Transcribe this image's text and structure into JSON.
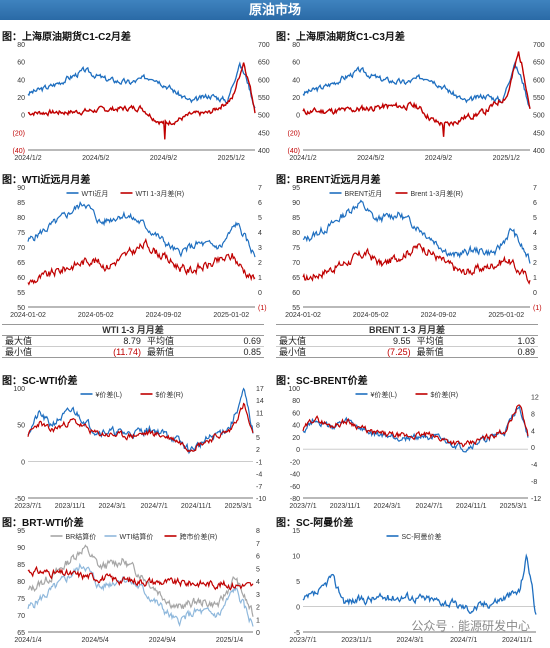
{
  "banner": "原油市场",
  "colors": {
    "blue": "#1f6fc0",
    "red": "#c00000",
    "lblue": "#8fb8dc",
    "gray": "#a6a6a6",
    "dred": "#a00000"
  },
  "watermark": "公众号 · 能源研发中心",
  "charts": [
    {
      "id": "c1",
      "title": "图：上海原油期货C1-C2月差",
      "type": "line",
      "yL": {
        "min": -40,
        "max": 80,
        "ticks": [
          "80",
          "60",
          "40",
          "20",
          "0",
          "(20)",
          "(40)"
        ],
        "negIdx": [
          5,
          6
        ]
      },
      "yR": {
        "min": 400,
        "max": 700,
        "ticks": [
          "700",
          "650",
          "600",
          "550",
          "500",
          "450",
          "400"
        ]
      },
      "xticks": [
        "2024/1/2",
        "2024/5/2",
        "2024/9/2",
        "2025/1/2"
      ],
      "x_range": [
        "2024-01-02",
        "2025-03-10"
      ],
      "series": [
        {
          "name": "",
          "axis": "R",
          "color": "blue",
          "width": 1.3,
          "shape": "sc_price",
          "base": 540
        },
        {
          "name": "",
          "axis": "L",
          "color": "red",
          "width": 1.4,
          "shape": "c1c2_spread"
        }
      ]
    },
    {
      "id": "c2",
      "title": "图：上海原油期货C1-C3月差",
      "type": "line",
      "yL": {
        "min": -40,
        "max": 80,
        "ticks": [
          "80",
          "60",
          "40",
          "20",
          "0",
          "(20)",
          "(40)"
        ],
        "negIdx": [
          5,
          6
        ]
      },
      "yR": {
        "min": 400,
        "max": 700,
        "ticks": [
          "700",
          "650",
          "600",
          "550",
          "500",
          "450",
          "400"
        ]
      },
      "xticks": [
        "2024/1/2",
        "2024/5/2",
        "2024/9/2",
        "2025/1/2"
      ],
      "x_range": [
        "2024-01-02",
        "2025-03-10"
      ],
      "series": [
        {
          "name": "",
          "axis": "R",
          "color": "blue",
          "width": 1.3,
          "shape": "sc_price",
          "base": 540
        },
        {
          "name": "",
          "axis": "L",
          "color": "red",
          "width": 1.4,
          "shape": "c1c3_spread"
        }
      ]
    },
    {
      "id": "c3",
      "title": "图：WTI近远月月差",
      "type": "line",
      "legend": [
        "WTI近月",
        "WTI 1-3月差(R)"
      ],
      "yL": {
        "min": 50,
        "max": 90,
        "ticks": [
          "90",
          "85",
          "80",
          "75",
          "70",
          "65",
          "60",
          "55",
          "50"
        ]
      },
      "yR": {
        "min": -1,
        "max": 7,
        "ticks": [
          "7",
          "6",
          "5",
          "4",
          "3",
          "2",
          "1",
          "0",
          "(1)"
        ],
        "negIdx": [
          8
        ]
      },
      "xticks": [
        "2024-01-02",
        "2024-05-02",
        "2024-09-02",
        "2025-01-02"
      ],
      "x_range": [
        "2024-01-02",
        "2025-03-10"
      ],
      "series": [
        {
          "name": "WTI近月",
          "axis": "L",
          "color": "blue",
          "width": 1.2,
          "shape": "wti"
        },
        {
          "name": "WTI 1-3月差(R)",
          "axis": "R",
          "color": "red",
          "width": 1.2,
          "shape": "wti_spread"
        }
      ]
    },
    {
      "id": "c4",
      "title": "图：BRENT近远月月差",
      "type": "line",
      "legend": [
        "BRENT近月",
        "Brent 1-3月差(R)"
      ],
      "yL": {
        "min": 55,
        "max": 95,
        "ticks": [
          "95",
          "90",
          "85",
          "80",
          "75",
          "70",
          "65",
          "60",
          "55"
        ]
      },
      "yR": {
        "min": -1,
        "max": 7,
        "ticks": [
          "7",
          "6",
          "5",
          "4",
          "3",
          "2",
          "1",
          "0",
          "(1)"
        ],
        "negIdx": [
          8
        ]
      },
      "xticks": [
        "2024-01-02",
        "2024-05-02",
        "2024-09-02",
        "2025-01-02"
      ],
      "x_range": [
        "2024-01-02",
        "2025-03-10"
      ],
      "series": [
        {
          "name": "BRENT近月",
          "axis": "L",
          "color": "blue",
          "width": 1.2,
          "shape": "brent"
        },
        {
          "name": "Brent 1-3月差(R)",
          "axis": "R",
          "color": "red",
          "width": 1.2,
          "shape": "brent_spread"
        }
      ]
    },
    {
      "id": "c5",
      "title": "图：SC-WTI价差",
      "type": "line",
      "legend": [
        "¥价差(L)",
        "$价差(R)"
      ],
      "yL": {
        "min": -50,
        "max": 100,
        "ticks": [
          "100",
          "50",
          "0",
          "-50"
        ]
      },
      "yR": {
        "min": -10,
        "max": 17,
        "ticks": [
          "17",
          "14",
          "11",
          "8",
          "5",
          "2",
          "-1",
          "-4",
          "-7",
          "-10"
        ]
      },
      "xticks": [
        "2023/7/1",
        "2023/11/1",
        "2024/3/1",
        "2024/7/1",
        "2024/11/1",
        "2025/3/1"
      ],
      "x_range": [
        "2023-07-01",
        "2025-03-10"
      ],
      "series": [
        {
          "name": "¥价差(L)",
          "axis": "L",
          "color": "blue",
          "width": 1.2,
          "shape": "sc_wti_cny"
        },
        {
          "name": "$价差(R)",
          "axis": "R",
          "color": "red",
          "width": 1.2,
          "shape": "sc_wti_usd"
        }
      ]
    },
    {
      "id": "c6",
      "title": "图：SC-BRENT价差",
      "type": "line",
      "legend": [
        "¥价差(L)",
        "$价差(R)"
      ],
      "yL": {
        "min": -80,
        "max": 100,
        "ticks": [
          "100",
          "80",
          "60",
          "40",
          "20",
          "0",
          "-20",
          "-40",
          "-60",
          "-80"
        ]
      },
      "yR": {
        "min": -12,
        "max": 14,
        "ticks": [
          "14",
          "12",
          "10",
          "8",
          "6",
          "4",
          "2",
          "0",
          "-2",
          "-4",
          "-6",
          "-8",
          "-10",
          "-12"
        ],
        "showIdx": [
          1,
          3,
          5,
          7,
          9,
          11,
          13
        ]
      },
      "xticks": [
        "2023/7/1",
        "2023/11/1",
        "2024/3/1",
        "2024/7/1",
        "2024/11/1",
        "2025/3/1"
      ],
      "x_range": [
        "2023-07-01",
        "2025-03-10"
      ],
      "series": [
        {
          "name": "¥价差(L)",
          "axis": "L",
          "color": "blue",
          "width": 1.2,
          "shape": "sc_brt_cny"
        },
        {
          "name": "$价差(R)",
          "axis": "R",
          "color": "red",
          "width": 1.2,
          "shape": "sc_brt_usd"
        }
      ]
    },
    {
      "id": "c7",
      "title": "图：BRT-WTI价差",
      "type": "line",
      "legend": [
        "BR结算价",
        "WTI结算价",
        "跨市价差(R)"
      ],
      "yL": {
        "min": 65,
        "max": 95,
        "ticks": [
          "95",
          "90",
          "85",
          "80",
          "75",
          "70",
          "65"
        ]
      },
      "yR": {
        "min": 0,
        "max": 8,
        "ticks": [
          "8",
          "7",
          "6",
          "5",
          "4",
          "3",
          "2",
          "1",
          "0"
        ]
      },
      "xticks": [
        "2024/1/4",
        "2024/5/4",
        "2024/9/4",
        "2025/1/4"
      ],
      "x_range": [
        "2024-01-04",
        "2025-03-10"
      ],
      "series": [
        {
          "name": "BR结算价",
          "axis": "L",
          "color": "gray",
          "width": 1.2,
          "shape": "brent"
        },
        {
          "name": "WTI结算价",
          "axis": "L",
          "color": "lblue",
          "width": 1.2,
          "shape": "wti"
        },
        {
          "name": "跨市价差(R)",
          "axis": "R",
          "color": "red",
          "width": 1.2,
          "shape": "brt_wti"
        }
      ]
    },
    {
      "id": "c8",
      "title": "图：SC-阿曼价差",
      "type": "line",
      "legend": [
        "SC-阿曼价差"
      ],
      "yL": {
        "min": -5,
        "max": 15,
        "ticks": [
          "15",
          "10",
          "5",
          "0",
          "-5"
        ]
      },
      "xticks": [
        "2023/7/1",
        "2023/11/1",
        "2024/3/1",
        "2024/7/1",
        "2024/11/1"
      ],
      "x_range": [
        "2023-07-01",
        "2025-03-10"
      ],
      "series": [
        {
          "name": "SC-阿曼价差",
          "axis": "L",
          "color": "blue",
          "width": 1.3,
          "shape": "sc_oman"
        }
      ]
    }
  ],
  "tables": [
    {
      "title": "WTI 1-3 月月差",
      "rows": [
        {
          "l1": "最大值",
          "v1": "8.79",
          "l2": "平均值",
          "v2": "0.69"
        },
        {
          "l1": "最小值",
          "v1": "(11.74)",
          "l2": "最新值",
          "v2": "0.85"
        }
      ]
    },
    {
      "title": "BRENT 1-3 月月差",
      "rows": [
        {
          "l1": "最大值",
          "v1": "9.55",
          "l2": "平均值",
          "v2": "1.03"
        },
        {
          "l1": "最小值",
          "v1": "(7.25)",
          "l2": "最新值",
          "v2": "0.89"
        }
      ]
    }
  ]
}
